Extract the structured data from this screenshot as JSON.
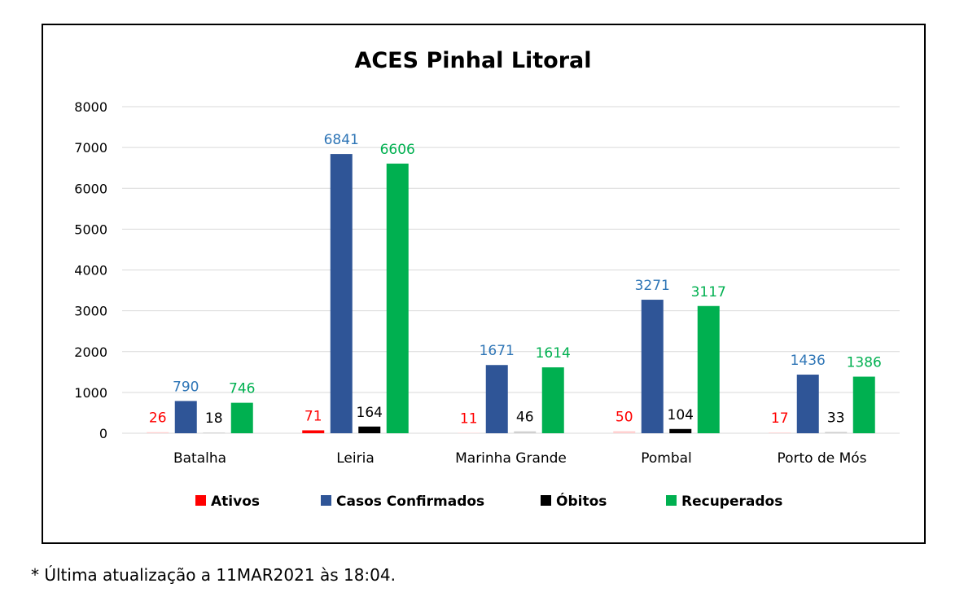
{
  "chart_data": {
    "type": "bar",
    "title": "ACES Pinhal Litoral",
    "categories": [
      "Batalha",
      "Leiria",
      "Marinha Grande",
      "Pombal",
      "Porto de Mós"
    ],
    "series": [
      {
        "name": "Ativos",
        "color": "#ff0000",
        "values": [
          26,
          71,
          11,
          50,
          17
        ]
      },
      {
        "name": "Casos Confirmados",
        "color": "#2f5597",
        "label_color": "#2e75b6",
        "values": [
          790,
          6841,
          1671,
          3271,
          1436
        ]
      },
      {
        "name": "Óbitos",
        "color": "#000000",
        "values": [
          18,
          164,
          46,
          104,
          33
        ]
      },
      {
        "name": "Recuperados",
        "color": "#00b050",
        "values": [
          746,
          6606,
          1614,
          3117,
          1386
        ]
      }
    ],
    "ylim": [
      0,
      8000
    ],
    "yticks": [
      0,
      1000,
      2000,
      3000,
      4000,
      5000,
      6000,
      7000,
      8000
    ],
    "grid": true,
    "legend_position": "bottom"
  },
  "footnote": "* Última atualização a 11MAR2021 às 18:04."
}
